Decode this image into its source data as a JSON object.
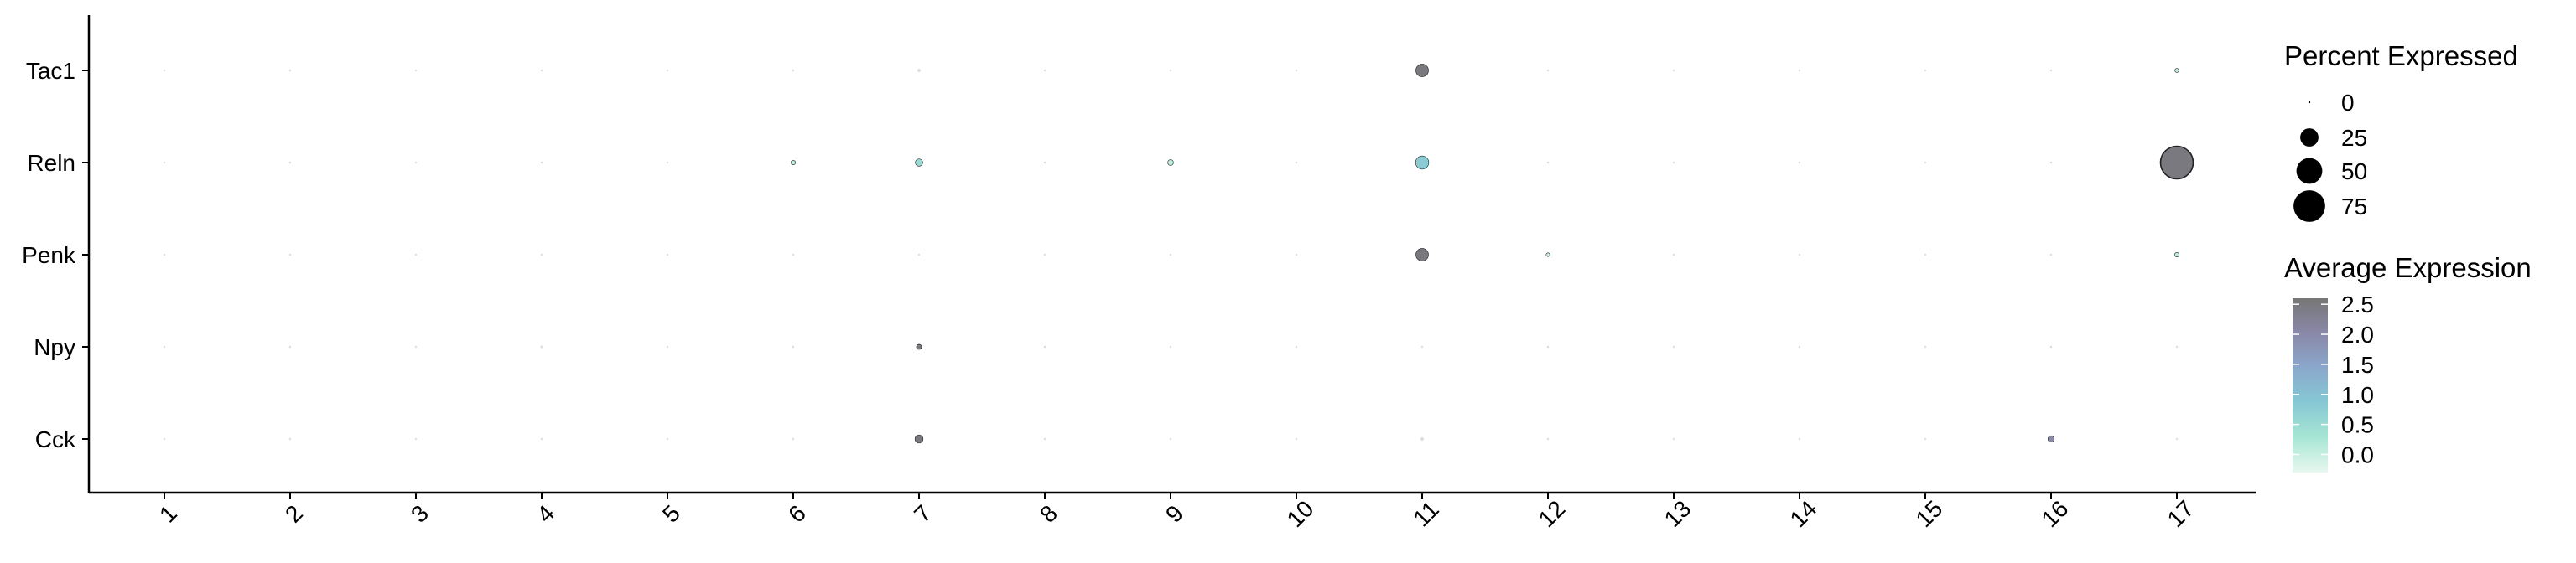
{
  "chart_data": {
    "type": "dotplot",
    "title": "",
    "xlabel": "",
    "ylabel": "",
    "x_categories": [
      "1",
      "2",
      "3",
      "4",
      "5",
      "6",
      "7",
      "8",
      "9",
      "10",
      "11",
      "12",
      "13",
      "14",
      "15",
      "16",
      "17"
    ],
    "y_categories": [
      "Tac1",
      "Reln",
      "Penk",
      "Npy",
      "Cck"
    ],
    "points": [
      {
        "gene": "Tac1",
        "cluster": "1",
        "pct": 0.3,
        "avg": 0.0
      },
      {
        "gene": "Tac1",
        "cluster": "2",
        "pct": 0.3,
        "avg": 0.0
      },
      {
        "gene": "Tac1",
        "cluster": "3",
        "pct": 0.3,
        "avg": 0.0
      },
      {
        "gene": "Tac1",
        "cluster": "4",
        "pct": 0.3,
        "avg": 0.0
      },
      {
        "gene": "Tac1",
        "cluster": "5",
        "pct": 0.3,
        "avg": 0.0
      },
      {
        "gene": "Tac1",
        "cluster": "6",
        "pct": 0.3,
        "avg": 0.0
      },
      {
        "gene": "Tac1",
        "cluster": "7",
        "pct": 0.8,
        "avg": 0.0
      },
      {
        "gene": "Tac1",
        "cluster": "8",
        "pct": 0.3,
        "avg": 0.0
      },
      {
        "gene": "Tac1",
        "cluster": "9",
        "pct": 0.3,
        "avg": 0.0
      },
      {
        "gene": "Tac1",
        "cluster": "10",
        "pct": 0.3,
        "avg": 0.0
      },
      {
        "gene": "Tac1",
        "cluster": "11",
        "pct": 12,
        "avg": 2.5
      },
      {
        "gene": "Tac1",
        "cluster": "12",
        "pct": 0.3,
        "avg": 0.0
      },
      {
        "gene": "Tac1",
        "cluster": "13",
        "pct": 0.3,
        "avg": 0.0
      },
      {
        "gene": "Tac1",
        "cluster": "14",
        "pct": 0.3,
        "avg": 0.0
      },
      {
        "gene": "Tac1",
        "cluster": "15",
        "pct": 0.3,
        "avg": 0.0
      },
      {
        "gene": "Tac1",
        "cluster": "16",
        "pct": 0.3,
        "avg": 0.0
      },
      {
        "gene": "Tac1",
        "cluster": "17",
        "pct": 1.2,
        "avg": 0.1
      },
      {
        "gene": "Reln",
        "cluster": "1",
        "pct": 0.3,
        "avg": 0.0
      },
      {
        "gene": "Reln",
        "cluster": "2",
        "pct": 0.3,
        "avg": 0.0
      },
      {
        "gene": "Reln",
        "cluster": "3",
        "pct": 0.3,
        "avg": 0.0
      },
      {
        "gene": "Reln",
        "cluster": "4",
        "pct": 0.3,
        "avg": 0.0
      },
      {
        "gene": "Reln",
        "cluster": "5",
        "pct": 0.3,
        "avg": 0.0
      },
      {
        "gene": "Reln",
        "cluster": "6",
        "pct": 1.5,
        "avg": 0.1
      },
      {
        "gene": "Reln",
        "cluster": "7",
        "pct": 4,
        "avg": 0.5
      },
      {
        "gene": "Reln",
        "cluster": "8",
        "pct": 0.3,
        "avg": 0.0
      },
      {
        "gene": "Reln",
        "cluster": "9",
        "pct": 2.5,
        "avg": 0.1
      },
      {
        "gene": "Reln",
        "cluster": "10",
        "pct": 0.3,
        "avg": 0.0
      },
      {
        "gene": "Reln",
        "cluster": "11",
        "pct": 13,
        "avg": 0.8
      },
      {
        "gene": "Reln",
        "cluster": "12",
        "pct": 0.3,
        "avg": 0.0
      },
      {
        "gene": "Reln",
        "cluster": "13",
        "pct": 0.3,
        "avg": 0.0
      },
      {
        "gene": "Reln",
        "cluster": "14",
        "pct": 0.3,
        "avg": 0.0
      },
      {
        "gene": "Reln",
        "cluster": "15",
        "pct": 0.3,
        "avg": 0.0
      },
      {
        "gene": "Reln",
        "cluster": "16",
        "pct": 0.3,
        "avg": 0.0
      },
      {
        "gene": "Reln",
        "cluster": "17",
        "pct": 80,
        "avg": 2.5
      },
      {
        "gene": "Penk",
        "cluster": "1",
        "pct": 0.3,
        "avg": 0.0
      },
      {
        "gene": "Penk",
        "cluster": "2",
        "pct": 0.3,
        "avg": 0.0
      },
      {
        "gene": "Penk",
        "cluster": "3",
        "pct": 0.3,
        "avg": 0.0
      },
      {
        "gene": "Penk",
        "cluster": "4",
        "pct": 0.3,
        "avg": 0.0
      },
      {
        "gene": "Penk",
        "cluster": "5",
        "pct": 0.3,
        "avg": 0.0
      },
      {
        "gene": "Penk",
        "cluster": "6",
        "pct": 0.3,
        "avg": 0.0
      },
      {
        "gene": "Penk",
        "cluster": "7",
        "pct": 0.3,
        "avg": 0.0
      },
      {
        "gene": "Penk",
        "cluster": "8",
        "pct": 0.3,
        "avg": 0.0
      },
      {
        "gene": "Penk",
        "cluster": "9",
        "pct": 0.3,
        "avg": 0.0
      },
      {
        "gene": "Penk",
        "cluster": "10",
        "pct": 0.3,
        "avg": 0.0
      },
      {
        "gene": "Penk",
        "cluster": "11",
        "pct": 12,
        "avg": 2.5
      },
      {
        "gene": "Penk",
        "cluster": "12",
        "pct": 1.0,
        "avg": 0.0
      },
      {
        "gene": "Penk",
        "cluster": "13",
        "pct": 0.3,
        "avg": 0.0
      },
      {
        "gene": "Penk",
        "cluster": "14",
        "pct": 0.3,
        "avg": 0.0
      },
      {
        "gene": "Penk",
        "cluster": "15",
        "pct": 0.3,
        "avg": 0.0
      },
      {
        "gene": "Penk",
        "cluster": "16",
        "pct": 0.3,
        "avg": 0.0
      },
      {
        "gene": "Penk",
        "cluster": "17",
        "pct": 1.5,
        "avg": 0.1
      },
      {
        "gene": "Npy",
        "cluster": "1",
        "pct": 0.3,
        "avg": 0.0
      },
      {
        "gene": "Npy",
        "cluster": "2",
        "pct": 0.3,
        "avg": 0.0
      },
      {
        "gene": "Npy",
        "cluster": "3",
        "pct": 0.3,
        "avg": 0.0
      },
      {
        "gene": "Npy",
        "cluster": "4",
        "pct": 0.5,
        "avg": 0.0
      },
      {
        "gene": "Npy",
        "cluster": "5",
        "pct": 0.3,
        "avg": 0.0
      },
      {
        "gene": "Npy",
        "cluster": "6",
        "pct": 0.3,
        "avg": 0.0
      },
      {
        "gene": "Npy",
        "cluster": "7",
        "pct": 2.0,
        "avg": 2.5
      },
      {
        "gene": "Npy",
        "cluster": "8",
        "pct": 0.3,
        "avg": 0.0
      },
      {
        "gene": "Npy",
        "cluster": "9",
        "pct": 0.3,
        "avg": 0.0
      },
      {
        "gene": "Npy",
        "cluster": "10",
        "pct": 0.3,
        "avg": 0.0
      },
      {
        "gene": "Npy",
        "cluster": "11",
        "pct": 0.3,
        "avg": 0.0
      },
      {
        "gene": "Npy",
        "cluster": "12",
        "pct": 0.3,
        "avg": 0.0
      },
      {
        "gene": "Npy",
        "cluster": "13",
        "pct": 0.3,
        "avg": 0.0
      },
      {
        "gene": "Npy",
        "cluster": "14",
        "pct": 0.3,
        "avg": 0.0
      },
      {
        "gene": "Npy",
        "cluster": "15",
        "pct": 0.3,
        "avg": 0.0
      },
      {
        "gene": "Npy",
        "cluster": "16",
        "pct": 0.3,
        "avg": 0.0
      },
      {
        "gene": "Npy",
        "cluster": "17",
        "pct": 0.3,
        "avg": 0.0
      },
      {
        "gene": "Cck",
        "cluster": "1",
        "pct": 0.3,
        "avg": 0.0
      },
      {
        "gene": "Cck",
        "cluster": "2",
        "pct": 0.3,
        "avg": 0.0
      },
      {
        "gene": "Cck",
        "cluster": "3",
        "pct": 0.3,
        "avg": 0.0
      },
      {
        "gene": "Cck",
        "cluster": "4",
        "pct": 0.3,
        "avg": 0.0
      },
      {
        "gene": "Cck",
        "cluster": "5",
        "pct": 0.3,
        "avg": 0.0
      },
      {
        "gene": "Cck",
        "cluster": "6",
        "pct": 0.3,
        "avg": 0.0
      },
      {
        "gene": "Cck",
        "cluster": "7",
        "pct": 5,
        "avg": 2.5
      },
      {
        "gene": "Cck",
        "cluster": "8",
        "pct": 0.3,
        "avg": 0.0
      },
      {
        "gene": "Cck",
        "cluster": "9",
        "pct": 0.3,
        "avg": 0.0
      },
      {
        "gene": "Cck",
        "cluster": "10",
        "pct": 0.3,
        "avg": 0.0
      },
      {
        "gene": "Cck",
        "cluster": "11",
        "pct": 0.8,
        "avg": 0.0
      },
      {
        "gene": "Cck",
        "cluster": "12",
        "pct": 0.3,
        "avg": 0.0
      },
      {
        "gene": "Cck",
        "cluster": "13",
        "pct": 0.3,
        "avg": 0.0
      },
      {
        "gene": "Cck",
        "cluster": "14",
        "pct": 0.3,
        "avg": 0.0
      },
      {
        "gene": "Cck",
        "cluster": "15",
        "pct": 0.3,
        "avg": 0.0
      },
      {
        "gene": "Cck",
        "cluster": "16",
        "pct": 3,
        "avg": 2.0
      },
      {
        "gene": "Cck",
        "cluster": "17",
        "pct": 0.3,
        "avg": 0.0
      }
    ],
    "size_legend": {
      "title": "Percent Expressed",
      "breaks": [
        0,
        25,
        50,
        75
      ],
      "labels": [
        "0",
        "25",
        "50",
        "75"
      ]
    },
    "color_legend": {
      "title": "Average Expression",
      "range": [
        -0.3,
        2.6
      ],
      "breaks": [
        2.5,
        2.0,
        1.5,
        1.0,
        0.5,
        0.0
      ],
      "labels": [
        "2.5",
        "2.0",
        "1.5",
        "1.0",
        "0.5",
        "0.0"
      ],
      "gradient": [
        "#e8f8f0",
        "#a8e6d4",
        "#86c8d4",
        "#8aa8cc",
        "#8a88a8",
        "#767676"
      ]
    },
    "grid": false,
    "legend_position": "right"
  }
}
